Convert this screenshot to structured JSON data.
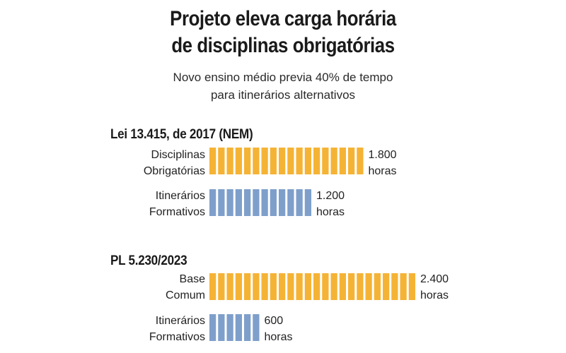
{
  "title_lines": [
    "Projeto eleva carga horária",
    "de disciplinas obrigatórias"
  ],
  "subtitle_lines": [
    "Novo ensino médio previa 40% de tempo",
    "para itinerários alternativos"
  ],
  "colors": {
    "obrigatorias": "#f5b335",
    "itinerarios": "#7f9fcb"
  },
  "chart_data": [
    {
      "type": "bar",
      "title": "Lei 13.415, de 2017 (NEM)",
      "categories": [
        {
          "line1": "Disciplinas",
          "line2": "Obrigatórias"
        },
        {
          "line1": "Itinerários",
          "line2": "Formativos"
        }
      ],
      "values": [
        1800,
        1200
      ],
      "value_labels": [
        {
          "line1": "1.800",
          "line2": "horas"
        },
        {
          "line1": "1.200",
          "line2": "horas"
        }
      ],
      "unit": "horas"
    },
    {
      "type": "bar",
      "title": "PL 5.230/2023",
      "categories": [
        {
          "line1": "Base",
          "line2": "Comum"
        },
        {
          "line1": "Itinerários",
          "line2": "Formativos"
        }
      ],
      "values": [
        2400,
        600
      ],
      "value_labels": [
        {
          "line1": "2.400",
          "line2": "horas"
        },
        {
          "line1": "600",
          "line2": "horas"
        }
      ],
      "unit": "horas"
    }
  ]
}
